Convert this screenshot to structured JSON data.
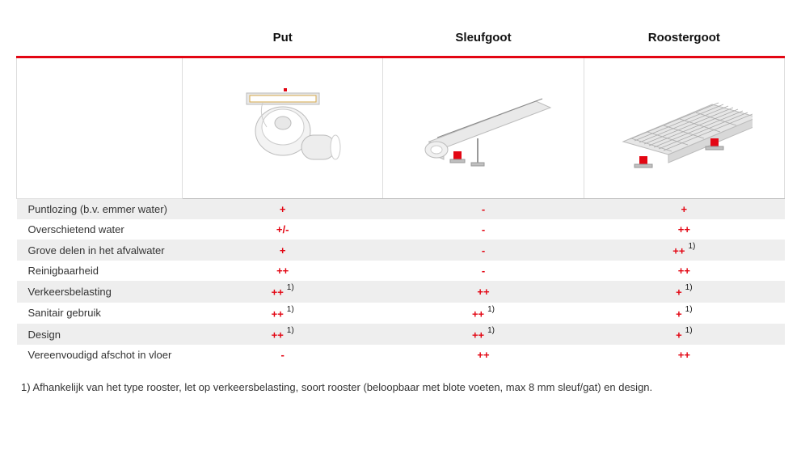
{
  "columns": [
    {
      "label": ""
    },
    {
      "label": "Put"
    },
    {
      "label": "Sleufgoot"
    },
    {
      "label": "Roostergoot"
    }
  ],
  "rows": [
    {
      "label": "Puntlozing (b.v. emmer water)",
      "stripe": true,
      "cells": [
        {
          "v": "+"
        },
        {
          "v": "-"
        },
        {
          "v": "+"
        }
      ]
    },
    {
      "label": "Overschietend water",
      "stripe": false,
      "cells": [
        {
          "v": "+/-"
        },
        {
          "v": "-"
        },
        {
          "v": "++"
        }
      ]
    },
    {
      "label": "Grove delen in het afvalwater",
      "stripe": true,
      "cells": [
        {
          "v": "+"
        },
        {
          "v": "-"
        },
        {
          "v": "++",
          "note": "1)"
        }
      ]
    },
    {
      "label": "Reinigbaarheid",
      "stripe": false,
      "cells": [
        {
          "v": "++"
        },
        {
          "v": "-"
        },
        {
          "v": "++"
        }
      ]
    },
    {
      "label": "Verkeersbelasting",
      "stripe": true,
      "cells": [
        {
          "v": "++",
          "note": "1)"
        },
        {
          "v": "++"
        },
        {
          "v": "+",
          "note": "1)"
        }
      ]
    },
    {
      "label": "Sanitair gebruik",
      "stripe": false,
      "cells": [
        {
          "v": "++",
          "note": "1)"
        },
        {
          "v": "++",
          "note": "1)"
        },
        {
          "v": "+",
          "note": "1)"
        }
      ]
    },
    {
      "label": "Design",
      "stripe": true,
      "cells": [
        {
          "v": "++",
          "note": "1)"
        },
        {
          "v": "++",
          "note": "1)"
        },
        {
          "v": "+",
          "note": "1)"
        }
      ]
    },
    {
      "label": "Vereenvoudigd afschot in vloer",
      "stripe": false,
      "cells": [
        {
          "v": "-"
        },
        {
          "v": "++"
        },
        {
          "v": "++"
        }
      ]
    }
  ],
  "footnote": "1)  Afhankelijk van het type rooster, let op verkeersbelasting, soort rooster (beloopbaar met blote voeten, max 8 mm sleuf/gat) en design.",
  "colors": {
    "accent": "#e30613",
    "stripe": "#eeeeee",
    "text": "#333333",
    "border": "#dddddd"
  }
}
